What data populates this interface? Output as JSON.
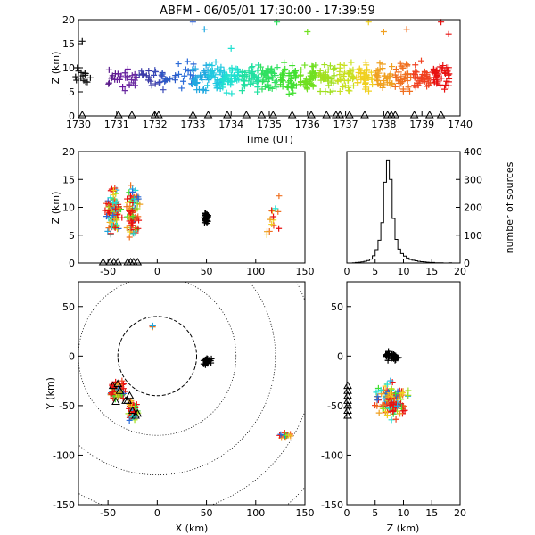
{
  "title": "ABFM - 06/05/01 17:30:00 - 17:39:59",
  "chart_data": [
    {
      "id": "time_height",
      "type": "scatter",
      "xlabel": "Time (UT)",
      "ylabel": "Z (km)",
      "xlim": [
        1730,
        1740
      ],
      "ylim": [
        0,
        20
      ],
      "xticks": [
        "1730",
        "1731",
        "1732",
        "1733",
        "1734",
        "1735",
        "1736",
        "1737",
        "1738",
        "1739",
        "1740"
      ],
      "yticks": [
        "0",
        "5",
        "10",
        "15",
        "20"
      ],
      "marker": "+",
      "color_by": "time (rainbow: purple → blue → cyan → green → yellow → orange → red)",
      "clusters": [
        {
          "t": 1730.1,
          "z": 8,
          "n": 14,
          "dz": 3,
          "color": "#111111"
        },
        {
          "t": 1730.9,
          "z": 8,
          "n": 10,
          "dz": 3,
          "color": "#5a1a8a"
        },
        {
          "t": 1731.2,
          "z": 7.5,
          "n": 6,
          "dz": 3,
          "color": "#6a1aa0"
        },
        {
          "t": 1731.4,
          "z": 7.5,
          "n": 14,
          "dz": 3,
          "color": "#6a2aa0"
        },
        {
          "t": 1731.8,
          "z": 8,
          "n": 12,
          "dz": 3,
          "color": "#3a3aa8"
        },
        {
          "t": 1732.1,
          "z": 7.5,
          "n": 10,
          "dz": 3,
          "color": "#3a4ab8"
        },
        {
          "t": 1732.4,
          "z": 8,
          "n": 8,
          "dz": 3,
          "color": "#2a5ac8"
        },
        {
          "t": 1732.8,
          "z": 8.5,
          "n": 14,
          "dz": 4,
          "color": "#2a6ad8"
        },
        {
          "t": 1733.2,
          "z": 8,
          "n": 30,
          "dz": 4,
          "color": "#20a8e0"
        },
        {
          "t": 1733.6,
          "z": 8,
          "n": 40,
          "dz": 4,
          "color": "#20c8e0"
        },
        {
          "t": 1734.0,
          "z": 8,
          "n": 40,
          "dz": 4,
          "color": "#20e0d0"
        },
        {
          "t": 1734.5,
          "z": 8,
          "n": 40,
          "dz": 4,
          "color": "#20e0a0"
        },
        {
          "t": 1735.0,
          "z": 8,
          "n": 40,
          "dz": 4,
          "color": "#30e060"
        },
        {
          "t": 1735.5,
          "z": 8,
          "n": 40,
          "dz": 4,
          "color": "#40e030"
        },
        {
          "t": 1736.0,
          "z": 8,
          "n": 40,
          "dz": 4,
          "color": "#70e020"
        },
        {
          "t": 1736.5,
          "z": 8,
          "n": 35,
          "dz": 4,
          "color": "#a0e020"
        },
        {
          "t": 1737.0,
          "z": 8,
          "n": 35,
          "dz": 4,
          "color": "#c8e020"
        },
        {
          "t": 1737.5,
          "z": 8,
          "n": 35,
          "dz": 4,
          "color": "#f0d020"
        },
        {
          "t": 1738.0,
          "z": 8,
          "n": 35,
          "dz": 4,
          "color": "#f0a020"
        },
        {
          "t": 1738.5,
          "z": 8,
          "n": 35,
          "dz": 4,
          "color": "#f07020"
        },
        {
          "t": 1739.0,
          "z": 8,
          "n": 35,
          "dz": 4,
          "color": "#f04020"
        },
        {
          "t": 1739.5,
          "z": 8,
          "n": 40,
          "dz": 4,
          "color": "#e81010"
        }
      ],
      "outliers": [
        {
          "t": 1730.1,
          "z": 15.5,
          "color": "#111111"
        },
        {
          "t": 1733.0,
          "z": 19.5,
          "color": "#3a6ad8"
        },
        {
          "t": 1733.3,
          "z": 18,
          "color": "#20a8e0"
        },
        {
          "t": 1734.0,
          "z": 14,
          "color": "#20e0d0"
        },
        {
          "t": 1735.2,
          "z": 19.5,
          "color": "#30e060"
        },
        {
          "t": 1736.0,
          "z": 17.5,
          "color": "#70e020"
        },
        {
          "t": 1737.6,
          "z": 19.5,
          "color": "#f0d020"
        },
        {
          "t": 1738.0,
          "z": 17.5,
          "color": "#f0a020"
        },
        {
          "t": 1738.6,
          "z": 18,
          "color": "#f07020"
        },
        {
          "t": 1739.5,
          "z": 19.5,
          "color": "#e81010"
        },
        {
          "t": 1739.7,
          "z": 17,
          "color": "#e81010"
        }
      ],
      "triangles_t": [
        1730.1,
        1731.05,
        1731.4,
        1732.0,
        1732.1,
        1733.0,
        1733.4,
        1733.9,
        1734.4,
        1734.8,
        1735.1,
        1735.6,
        1736.1,
        1736.5,
        1736.75,
        1736.85,
        1737.1,
        1737.5,
        1738.1,
        1738.2,
        1738.3,
        1738.8,
        1739.2,
        1739.5
      ]
    },
    {
      "id": "x_height",
      "type": "scatter",
      "xlabel": "",
      "ylabel": "Z (km)",
      "xlim": [
        -80,
        150
      ],
      "ylim": [
        0,
        20
      ],
      "xticks": [
        "-50",
        "0",
        "50",
        "100",
        "150"
      ],
      "yticks": [
        "0",
        "5",
        "10",
        "15",
        "20"
      ],
      "marker": "+",
      "clusters": [
        {
          "x": -45,
          "z": 9,
          "n": 90,
          "dx": 12,
          "dz": 6,
          "color": "mix"
        },
        {
          "x": -25,
          "z": 9,
          "n": 80,
          "dx": 9,
          "dz": 6,
          "color": "mix"
        },
        {
          "x": 50,
          "z": 8,
          "n": 30,
          "dx": 4,
          "dz": 2,
          "color": "#000000"
        },
        {
          "x": 120,
          "z": 8,
          "n": 14,
          "dx": 14,
          "dz": 5,
          "color": "mix"
        }
      ],
      "triangles_x": [
        -55,
        -48,
        -44,
        -40,
        -30,
        -27,
        -24,
        -20
      ]
    },
    {
      "id": "height_histogram",
      "type": "bar",
      "xlabel": "",
      "ylabel": "number of sources",
      "xlim": [
        0,
        20
      ],
      "ylim": [
        0,
        400
      ],
      "xticks": [
        "0",
        "5",
        "10",
        "15",
        "20"
      ],
      "yticks": [
        "0",
        "100",
        "200",
        "300",
        "400"
      ],
      "bin_width_km": 0.5,
      "bin_start_km": 0,
      "values": [
        0,
        0,
        1,
        2,
        3,
        4,
        6,
        9,
        14,
        26,
        48,
        82,
        145,
        290,
        370,
        300,
        160,
        85,
        50,
        34,
        25,
        18,
        13,
        10,
        8,
        6,
        5,
        4,
        3,
        2,
        2,
        1,
        1,
        1,
        0,
        0,
        1,
        0,
        0,
        0
      ]
    },
    {
      "id": "plan_view",
      "type": "scatter",
      "xlabel": "X (km)",
      "ylabel": "Y (km)",
      "xlim": [
        -80,
        150
      ],
      "ylim": [
        -150,
        75
      ],
      "xticks": [
        "-50",
        "0",
        "50",
        "100",
        "150"
      ],
      "yticks": [
        "-150",
        "-100",
        "-50",
        "0",
        "50"
      ],
      "range_rings_km": [
        40,
        80,
        120,
        160,
        200
      ],
      "ring_center": [
        0,
        0
      ],
      "marker": "+",
      "clusters": [
        {
          "x": -40,
          "y": -35,
          "n": 60,
          "dx": 10,
          "dy": 12,
          "color": "mix"
        },
        {
          "x": -25,
          "y": -55,
          "n": 60,
          "dx": 8,
          "dy": 14,
          "color": "mix"
        },
        {
          "x": 50,
          "y": -5,
          "n": 30,
          "dx": 6,
          "dy": 6,
          "color": "#000000"
        },
        {
          "x": 130,
          "y": -80,
          "n": 14,
          "dx": 10,
          "dy": 6,
          "color": "mix"
        },
        {
          "x": -5,
          "y": 30,
          "n": 4,
          "dx": 3,
          "dy": 2,
          "color": "mix"
        }
      ],
      "triangles": [
        [
          -45,
          -30
        ],
        [
          -40,
          -28
        ],
        [
          -38,
          -35
        ],
        [
          -30,
          -45
        ],
        [
          -25,
          -55
        ],
        [
          -22,
          -60
        ],
        [
          -20,
          -58
        ],
        [
          -28,
          -40
        ],
        [
          -32,
          -45
        ],
        [
          -42,
          -46
        ]
      ]
    },
    {
      "id": "height_y",
      "type": "scatter",
      "xlabel": "Z (km)",
      "ylabel": "",
      "xlim": [
        0,
        20
      ],
      "ylim": [
        -150,
        75
      ],
      "xticks": [
        "0",
        "5",
        "10",
        "15",
        "20"
      ],
      "yticks": [
        "-150",
        "-100",
        "-50",
        "0",
        "50"
      ],
      "marker": "+",
      "clusters": [
        {
          "z": 8,
          "y": -45,
          "n": 130,
          "dz": 3.5,
          "dy": 25,
          "color": "mix"
        },
        {
          "z": 8,
          "y": 0,
          "n": 30,
          "dz": 1.5,
          "dy": 6,
          "color": "#000000"
        }
      ],
      "triangles_y": [
        -30,
        -35,
        -40,
        -45,
        -50,
        -55,
        -60
      ]
    }
  ]
}
